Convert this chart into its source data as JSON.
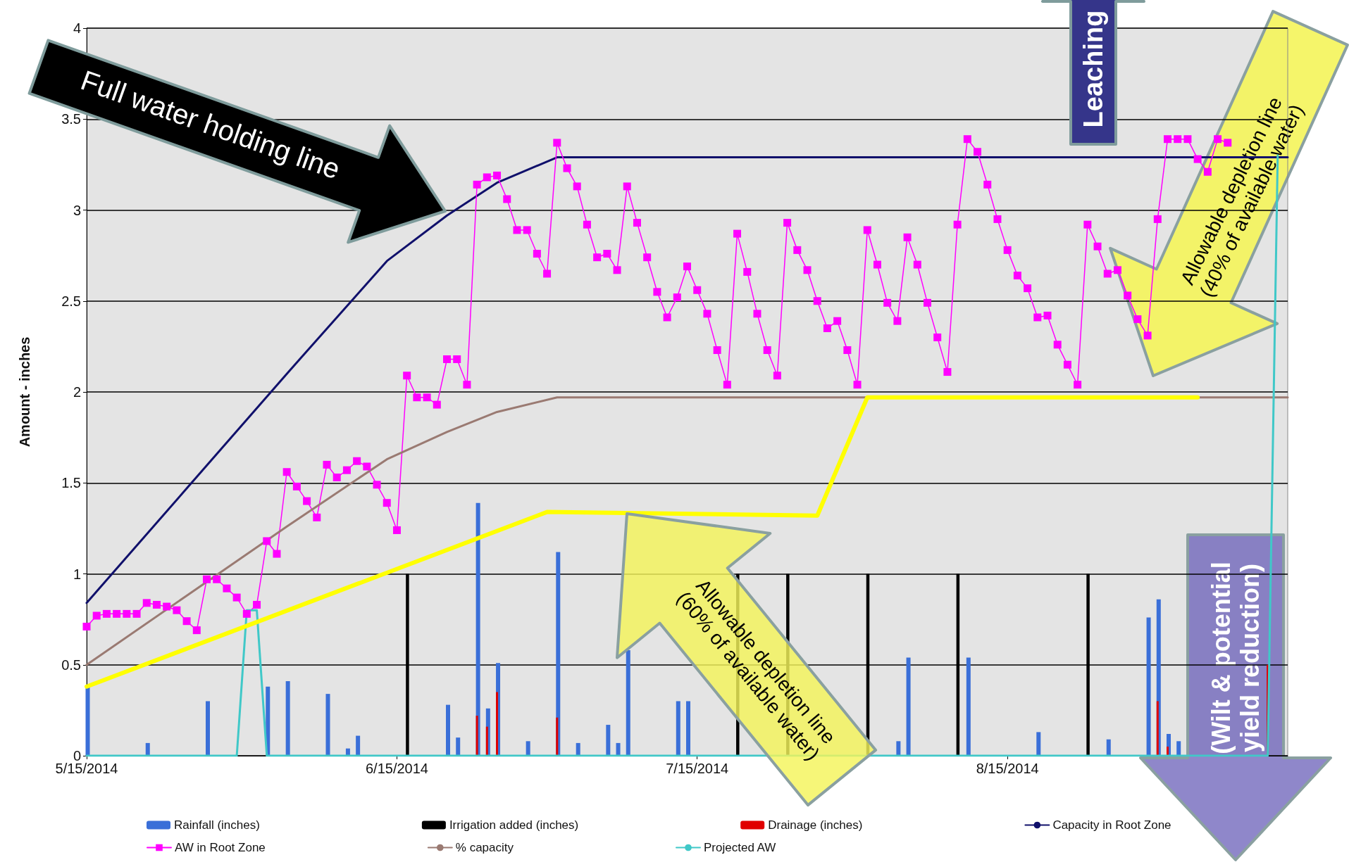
{
  "chart_data": {
    "type": "line",
    "annotations": [
      "Full water holding line",
      "Leaching",
      "Allowable depletion line\n(60% of available water)",
      "Allowable depletion line\n(40% of available water)",
      "(Wilt & potential\nyield reduction)"
    ],
    "ylabel": "Amount - inches",
    "xlim": [
      "2014-05-15",
      "2014-09-12"
    ],
    "xticks": [
      {
        "value": "2014-05-15",
        "label": "5/15/2014"
      },
      {
        "value": "2014-06-15",
        "label": "6/15/2014"
      },
      {
        "value": "2014-07-15",
        "label": "7/15/2014"
      },
      {
        "value": "2014-08-15",
        "label": "8/15/2014"
      }
    ],
    "ylim": [
      0,
      4
    ],
    "yticks": [
      0,
      0.5,
      1,
      1.5,
      2,
      2.5,
      3,
      3.5,
      4
    ],
    "grid": "y",
    "legend": "bottom",
    "series": [
      {
        "name": "Rainfall (inches)",
        "type": "bar",
        "color": "#3a6fd8",
        "x": [
          "2014-05-15",
          "2014-05-21",
          "2014-05-27",
          "2014-06-02",
          "2014-06-04",
          "2014-06-08",
          "2014-06-10",
          "2014-06-11",
          "2014-06-20",
          "2014-06-21",
          "2014-06-23",
          "2014-06-24",
          "2014-06-25",
          "2014-06-28",
          "2014-07-01",
          "2014-07-03",
          "2014-07-06",
          "2014-07-07",
          "2014-07-08",
          "2014-07-13",
          "2014-07-14",
          "2014-08-04",
          "2014-08-05",
          "2014-08-11",
          "2014-08-18",
          "2014-08-25",
          "2014-08-29",
          "2014-08-30",
          "2014-08-31",
          "2014-09-01"
        ],
        "values": [
          0.38,
          0.07,
          0.3,
          0.38,
          0.41,
          0.34,
          0.04,
          0.11,
          0.28,
          0.1,
          1.39,
          0.26,
          0.51,
          0.08,
          1.12,
          0.07,
          0.17,
          0.07,
          0.58,
          0.3,
          0.3,
          0.08,
          0.54,
          0.54,
          0.13,
          0.09,
          0.76,
          0.86,
          0.12,
          0.08
        ]
      },
      {
        "name": "Irrigation added (inches)",
        "type": "bar",
        "color": "#000000",
        "x": [
          "2014-06-16",
          "2014-07-19",
          "2014-07-24",
          "2014-08-01",
          "2014-08-10",
          "2014-08-23"
        ],
        "values": [
          1,
          1,
          1,
          1,
          1,
          1
        ]
      },
      {
        "name": "Drainage (inches)",
        "type": "bar",
        "color": "#e00000",
        "x": [
          "2014-06-23",
          "2014-06-24",
          "2014-06-25",
          "2014-07-01",
          "2014-08-30",
          "2014-08-31",
          "2014-09-10"
        ],
        "values": [
          0.22,
          0.16,
          0.35,
          0.21,
          0.3,
          0.05,
          0.5
        ]
      },
      {
        "name": "Capacity in Root Zone",
        "color": "#10106b",
        "x": [
          "2014-05-15",
          "2014-05-25",
          "2014-06-04",
          "2014-06-14",
          "2014-06-20",
          "2014-06-25",
          "2014-07-01",
          "2014-09-12"
        ],
        "values": [
          0.84,
          1.47,
          2.1,
          2.72,
          2.97,
          3.15,
          3.29,
          3.29
        ]
      },
      {
        "name": "AW in Root Zone",
        "color": "#ff00ff",
        "marker": "square",
        "x": [
          "2014-05-15",
          "2014-05-16",
          "2014-05-17",
          "2014-05-18",
          "2014-05-19",
          "2014-05-20",
          "2014-05-21",
          "2014-05-22",
          "2014-05-23",
          "2014-05-24",
          "2014-05-25",
          "2014-05-26",
          "2014-05-27",
          "2014-05-28",
          "2014-05-29",
          "2014-05-30",
          "2014-05-31",
          "2014-06-01",
          "2014-06-02",
          "2014-06-03",
          "2014-06-04",
          "2014-06-05",
          "2014-06-06",
          "2014-06-07",
          "2014-06-08",
          "2014-06-09",
          "2014-06-10",
          "2014-06-11",
          "2014-06-12",
          "2014-06-13",
          "2014-06-14",
          "2014-06-15",
          "2014-06-16",
          "2014-06-17",
          "2014-06-18",
          "2014-06-19",
          "2014-06-20",
          "2014-06-21",
          "2014-06-22",
          "2014-06-23",
          "2014-06-24",
          "2014-06-25",
          "2014-06-26",
          "2014-06-27",
          "2014-06-28",
          "2014-06-29",
          "2014-06-30",
          "2014-07-01",
          "2014-07-02",
          "2014-07-03",
          "2014-07-04",
          "2014-07-05",
          "2014-07-06",
          "2014-07-07",
          "2014-07-08",
          "2014-07-09",
          "2014-07-10",
          "2014-07-11",
          "2014-07-12",
          "2014-07-13",
          "2014-07-14",
          "2014-07-15",
          "2014-07-16",
          "2014-07-17",
          "2014-07-18",
          "2014-07-19",
          "2014-07-20",
          "2014-07-21",
          "2014-07-22",
          "2014-07-23",
          "2014-07-24",
          "2014-07-25",
          "2014-07-26",
          "2014-07-27",
          "2014-07-28",
          "2014-07-29",
          "2014-07-30",
          "2014-07-31",
          "2014-08-01",
          "2014-08-02",
          "2014-08-03",
          "2014-08-04",
          "2014-08-05",
          "2014-08-06",
          "2014-08-07",
          "2014-08-08",
          "2014-08-09",
          "2014-08-10",
          "2014-08-11",
          "2014-08-12",
          "2014-08-13",
          "2014-08-14",
          "2014-08-15",
          "2014-08-16",
          "2014-08-17",
          "2014-08-18",
          "2014-08-19",
          "2014-08-20",
          "2014-08-21",
          "2014-08-22",
          "2014-08-23",
          "2014-08-24",
          "2014-08-25",
          "2014-08-26",
          "2014-08-27",
          "2014-08-28",
          "2014-08-29",
          "2014-08-30",
          "2014-08-31",
          "2014-09-01",
          "2014-09-02",
          "2014-09-03",
          "2014-09-04",
          "2014-09-05",
          "2014-09-06"
        ],
        "values": [
          0.71,
          0.77,
          0.78,
          0.78,
          0.78,
          0.78,
          0.84,
          0.83,
          0.82,
          0.8,
          0.74,
          0.69,
          0.97,
          0.97,
          0.92,
          0.87,
          0.78,
          0.83,
          1.18,
          1.11,
          1.56,
          1.48,
          1.4,
          1.31,
          1.6,
          1.53,
          1.57,
          1.62,
          1.59,
          1.49,
          1.39,
          1.24,
          2.09,
          1.97,
          1.97,
          1.93,
          2.18,
          2.18,
          2.04,
          3.14,
          3.18,
          3.19,
          3.06,
          2.89,
          2.89,
          2.76,
          2.65,
          3.37,
          3.23,
          3.13,
          2.92,
          2.74,
          2.76,
          2.67,
          3.13,
          2.93,
          2.74,
          2.55,
          2.41,
          2.52,
          2.69,
          2.56,
          2.43,
          2.23,
          2.04,
          2.87,
          2.66,
          2.43,
          2.23,
          2.09,
          2.93,
          2.78,
          2.67,
          2.5,
          2.35,
          2.39,
          2.23,
          2.04,
          2.89,
          2.7,
          2.49,
          2.39,
          2.85,
          2.7,
          2.49,
          2.3,
          2.11,
          2.92,
          3.39,
          3.32,
          3.14,
          2.95,
          2.78,
          2.64,
          2.57,
          2.41,
          2.42,
          2.26,
          2.15,
          2.04,
          2.92,
          2.8,
          2.65,
          2.67,
          2.53,
          2.4,
          2.31,
          2.95,
          3.39,
          3.39,
          3.39,
          3.28,
          3.21,
          3.39,
          3.37
        ]
      },
      {
        "name": "% capacity",
        "color": "#9a7a72",
        "x": [
          "2014-05-15",
          "2014-05-25",
          "2014-06-04",
          "2014-06-14",
          "2014-06-20",
          "2014-06-25",
          "2014-07-01",
          "2014-09-12"
        ],
        "values": [
          0.5,
          0.88,
          1.26,
          1.63,
          1.78,
          1.89,
          1.97,
          1.97
        ]
      },
      {
        "name": "Projected AW",
        "color": "#40c8c8",
        "x": [
          "2014-05-15",
          "2014-05-30",
          "2014-05-31",
          "2014-06-01",
          "2014-06-02",
          "2014-09-10",
          "2014-09-11"
        ],
        "values": [
          0,
          0,
          0.8,
          0.8,
          0,
          0,
          3.3
        ]
      },
      {
        "color": "#ffff00",
        "x": [
          "2014-05-15",
          "2014-06-30",
          "2014-07-27",
          "2014-08-01",
          "2014-09-03"
        ],
        "values": [
          0.38,
          1.34,
          1.32,
          1.97,
          1.97
        ]
      }
    ]
  }
}
